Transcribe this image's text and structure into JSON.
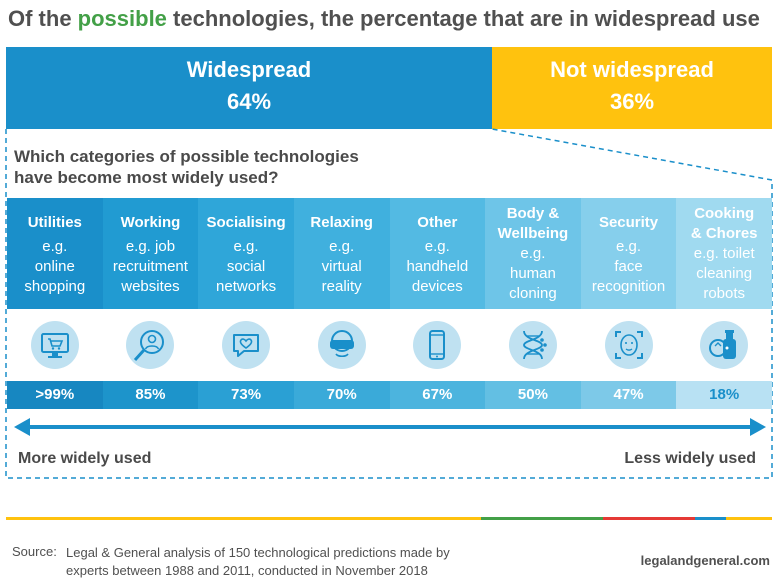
{
  "title": {
    "prefix": "Of the ",
    "highlight": "possible",
    "suffix": " technologies, the percentage that are in widespread use"
  },
  "chart_data": {
    "type": "bar",
    "title": "Of the possible technologies, the percentage that are in widespread use",
    "split": [
      {
        "name": "Widespread",
        "label": "64%",
        "value": 64
      },
      {
        "name": "Not widespread",
        "label": "36%",
        "value": 36
      }
    ],
    "subtitle_lines": [
      "Which categories of possible technologies",
      "have become most widely used?"
    ],
    "categories": [
      {
        "name": "Utilities",
        "example": "e.g. online shopping",
        "label": ">99%",
        "value": 99
      },
      {
        "name": "Working",
        "example": "e.g. job recruitment websites",
        "label": "85%",
        "value": 85
      },
      {
        "name": "Socialising",
        "example": "e.g. social networks",
        "label": "73%",
        "value": 73
      },
      {
        "name": "Relaxing",
        "example": "e.g. virtual reality",
        "label": "70%",
        "value": 70
      },
      {
        "name": "Other",
        "example": "e.g. handheld devices",
        "label": "67%",
        "value": 67
      },
      {
        "name": "Body & Wellbeing",
        "example": "e.g. human cloning",
        "label": "50%",
        "value": 50
      },
      {
        "name": "Security",
        "example": "e.g. face recognition",
        "label": "47%",
        "value": 47
      },
      {
        "name": "Cooking & Chores",
        "example": "e.g. toilet cleaning robots",
        "label": "18%",
        "value": 18
      }
    ],
    "axis": {
      "left_label": "More widely used",
      "right_label": "Less widely used"
    }
  },
  "columns": [
    {
      "title": [
        "Utilities"
      ],
      "eg": [
        "e.g.",
        "online",
        "shopping"
      ],
      "icon": "shopping-cart-monitor-icon"
    },
    {
      "title": [
        "Working"
      ],
      "eg": [
        "e.g. job",
        "recruitment",
        "websites"
      ],
      "icon": "magnifier-person-icon"
    },
    {
      "title": [
        "Socialising"
      ],
      "eg": [
        "e.g.",
        "social",
        "networks"
      ],
      "icon": "heart-speech-bubble-icon"
    },
    {
      "title": [
        "Relaxing"
      ],
      "eg": [
        "e.g.",
        "virtual",
        "reality"
      ],
      "icon": "vr-headset-icon"
    },
    {
      "title": [
        "Other"
      ],
      "eg": [
        "e.g.",
        "handheld",
        "devices"
      ],
      "icon": "smartphone-icon"
    },
    {
      "title": [
        "Body &",
        "Wellbeing"
      ],
      "eg": [
        "e.g.",
        "human",
        "cloning"
      ],
      "icon": "dna-icon"
    },
    {
      "title": [
        "Security"
      ],
      "eg": [
        "e.g.",
        "face",
        "recognition"
      ],
      "icon": "face-scan-icon"
    },
    {
      "title": [
        "Cooking",
        "& Chores"
      ],
      "eg": [
        "e.g. toilet",
        "cleaning",
        "robots"
      ],
      "icon": "cleaning-bottle-icon"
    }
  ],
  "colors": {
    "widespread": "#1a8fca",
    "not_widespread": "#ffc20e",
    "highlight": "#43a047",
    "columns": [
      "#1a8fca",
      "#219bd2",
      "#2fa6d9",
      "#40b0de",
      "#53bae3",
      "#6ec5e8",
      "#86cfec",
      "#a0daf0"
    ],
    "pct_row": [
      "#1787c1",
      "#1d94cb",
      "#2aa0d4",
      "#3aaad9",
      "#4cb4de",
      "#63bfe3",
      "#7dc9e8",
      "#b8e1f3"
    ],
    "pct_text_last": "#1a8fca",
    "colorbar": [
      "#ffc20e",
      "#43a047",
      "#e53935",
      "#1a8fca",
      "#ffc20e"
    ]
  },
  "source": {
    "label": "Source:",
    "lines": [
      "Legal & General analysis of 150 technological predictions made by",
      "experts between 1988 and 2011, conducted in November 2018"
    ],
    "brand": "legalandgeneral.com"
  }
}
